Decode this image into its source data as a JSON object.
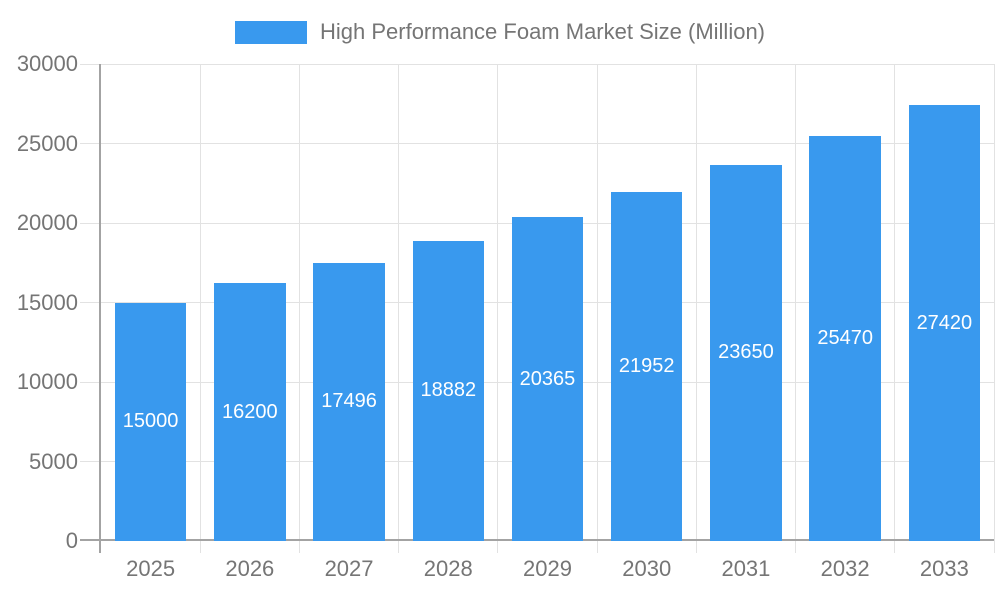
{
  "legend": {
    "label": "High Performance Foam Market Size (Million)"
  },
  "colors": {
    "bar": "#3999ee",
    "grid": "#e2e2e2",
    "axis": "#a3a3a3",
    "tick_text": "#757575",
    "bar_label_text": "#ffffff",
    "background": "#ffffff"
  },
  "chart_data": {
    "type": "bar",
    "categories": [
      "2025",
      "2026",
      "2027",
      "2028",
      "2029",
      "2030",
      "2031",
      "2032",
      "2033"
    ],
    "series": [
      {
        "name": "High Performance Foam Market Size (Million)",
        "values": [
          15000,
          16200,
          17496,
          18882,
          20365,
          21952,
          23650,
          25470,
          27420
        ]
      }
    ],
    "title": "",
    "xlabel": "",
    "ylabel": "",
    "ylim": [
      0,
      30000
    ],
    "yticks": [
      0,
      5000,
      10000,
      15000,
      20000,
      25000,
      30000
    ],
    "grid": true,
    "legend_position": "top",
    "bar_value_labels": "inside-center"
  }
}
